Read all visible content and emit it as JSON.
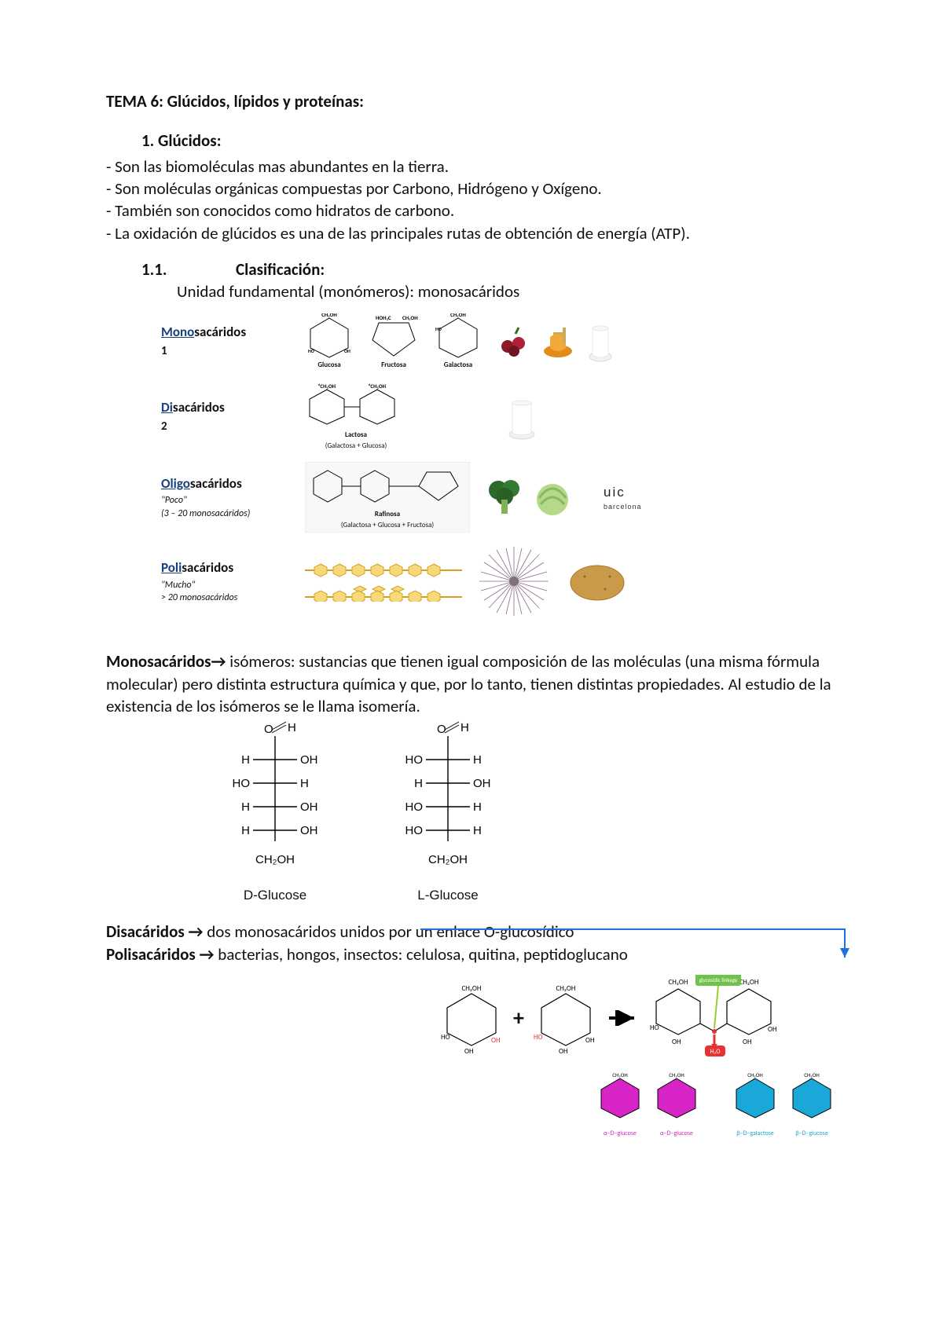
{
  "title": "TEMA 6: Glúcidos, lípidos y proteínas:",
  "s1": {
    "num": "1.  Glúcidos:",
    "bullets": [
      "- Son las biomoléculas mas abundantes en la tierra.",
      "- Son moléculas orgánicas compuestas por Carbono, Hidrógeno y Oxígeno.",
      "- También son conocidos como hidratos de carbono.",
      "- La oxidación de glúcidos es una de las principales rutas de obtención de energía (ATP)."
    ]
  },
  "s11": {
    "num": "1.1.",
    "label": "Clasificación:",
    "unit_line": "Unidad fundamental (monómeros): monosacáridos"
  },
  "classification": [
    {
      "pref": "Mono",
      "suff": "sacáridos",
      "num": "1",
      "note": "",
      "chems": [
        {
          "name": "Glucosa",
          "subtitle": ""
        },
        {
          "name": "Fructosa",
          "subtitle": ""
        },
        {
          "name": "Galactosa",
          "subtitle": ""
        }
      ],
      "foods": [
        "berries",
        "honey",
        "milk"
      ]
    },
    {
      "pref": "Di",
      "suff": "sacáridos",
      "num": "2",
      "note": "",
      "chems": [
        {
          "name": "Lactosa",
          "subtitle": "(Galactosa + Glucosa)"
        }
      ],
      "foods": [
        "milk"
      ]
    },
    {
      "pref": "Oligo",
      "suff": "sacáridos",
      "num": "",
      "note": "\"Poco\"\n(3 – 20 monosacáridos)",
      "chems": [
        {
          "name": "Rafinosa",
          "subtitle": "(Galactosa + Glucosa + Fructosa)"
        }
      ],
      "foods": [
        "broccoli",
        "cabbage"
      ],
      "logo": true
    },
    {
      "pref": "Poli",
      "suff": "sacáridos",
      "num": "",
      "note": "\"Mucho\"\n> 20 monosacáridos",
      "chems": [
        {
          "name": "",
          "subtitle": ""
        }
      ],
      "foods": [
        "potato"
      ]
    }
  ],
  "para_mono": "Monosacáridos→ isómeros: sustancias que tienen igual composición de las moléculas (una misma fórmula molecular) pero distinta estructura química y que, por lo tanto, tienen distintas propiedades. Al estudio de la existencia de los isómeros se le llama isomería.",
  "fischer": {
    "d": {
      "rows": [
        [
          "H",
          "OH"
        ],
        [
          "HO",
          "H"
        ],
        [
          "H",
          "OH"
        ],
        [
          "H",
          "OH"
        ]
      ],
      "bottom": "CH₂OH",
      "label": "D-Glucose"
    },
    "l": {
      "rows": [
        [
          "HO",
          "H"
        ],
        [
          "H",
          "OH"
        ],
        [
          "HO",
          "H"
        ],
        [
          "HO",
          "H"
        ]
      ],
      "bottom": "CH₂OH",
      "label": "L-Glucose"
    }
  },
  "para_di": "Disacáridos → dos monosacáridos unidos por un enlace O-glucosídico",
  "para_poli": "Polisacáridos → bacterias, hongos, insectos: celulosa, quitina, peptidoglucano",
  "bottom": {
    "linkage": "glycosidic linkage",
    "ch2oh": "CH₂OH",
    "oh": "OH",
    "h2o": "H₂O",
    "hex_labels": [
      "α–D–glucose",
      "α–D–glucose",
      "β–D–galactose",
      "β–D–glucose"
    ]
  },
  "colors": {
    "prefix_blue": "#1a4a8a",
    "magenta": "#d724c7",
    "cyan": "#1aa8d8",
    "green_badge": "#6fc24a",
    "red_badge": "#e63232",
    "connector": "#1f6fe0"
  },
  "logo": {
    "name": "uic",
    "sub": "barcelona"
  }
}
